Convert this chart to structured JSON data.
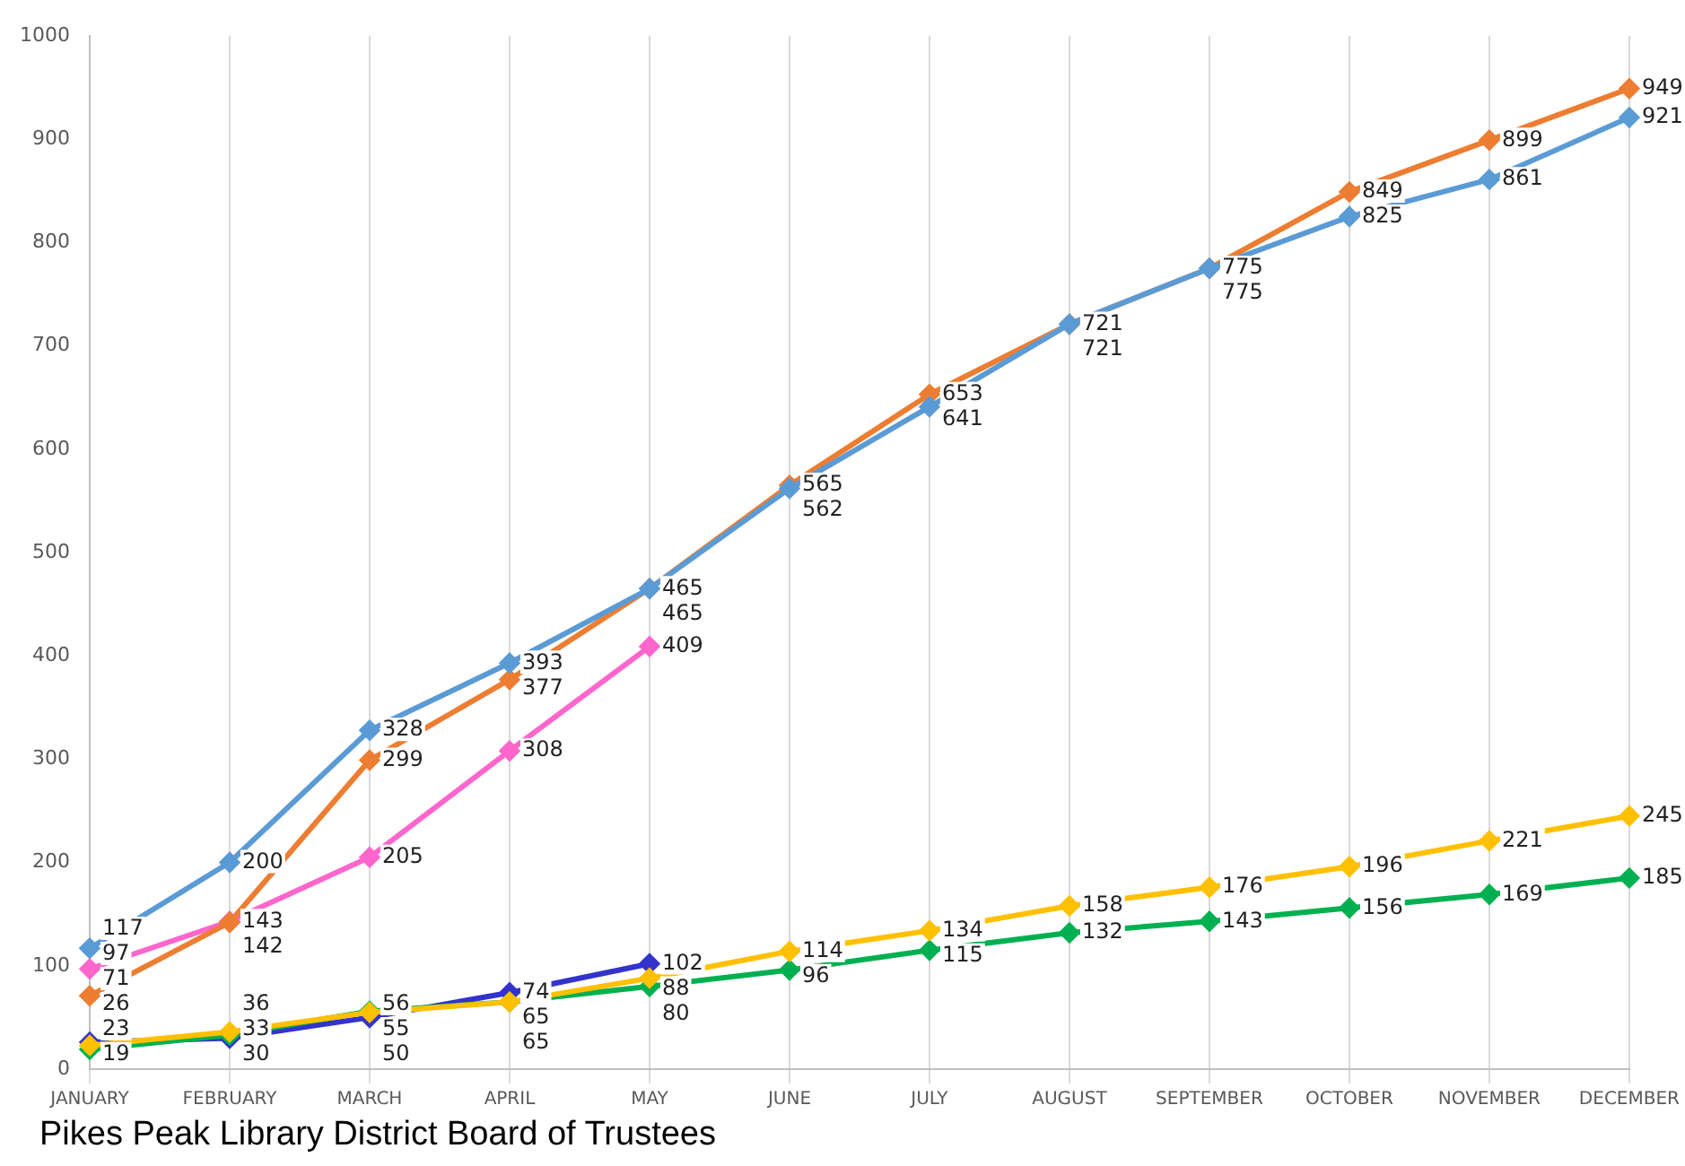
{
  "chart_data": {
    "type": "line",
    "categories": [
      "JANUARY",
      "FEBRUARY",
      "MARCH",
      "APRIL",
      "MAY",
      "JUNE",
      "JULY",
      "AUGUST",
      "SEPTEMBER",
      "OCTOBER",
      "NOVEMBER",
      "DECEMBER"
    ],
    "series": [
      {
        "color": "#5b9bd5",
        "values": [
          117,
          200,
          328,
          393,
          465,
          562,
          641,
          721,
          775,
          825,
          861,
          921
        ]
      },
      {
        "color": "#ed7d31",
        "values": [
          71,
          142,
          299,
          377,
          465,
          565,
          653,
          721,
          775,
          849,
          899,
          949
        ]
      },
      {
        "color": "#ff66cc",
        "values": [
          97,
          143,
          205,
          308,
          409,
          null,
          null,
          null,
          null,
          null,
          null,
          null
        ]
      },
      {
        "color": "#ffc000",
        "values": [
          23,
          36,
          55,
          65,
          88,
          114,
          134,
          158,
          176,
          196,
          221,
          245
        ]
      },
      {
        "color": "#00b050",
        "values": [
          19,
          33,
          56,
          65,
          80,
          96,
          115,
          132,
          143,
          156,
          169,
          185
        ]
      },
      {
        "color": "#3333cc",
        "values": [
          26,
          30,
          50,
          74,
          102,
          null,
          null,
          null,
          null,
          null,
          null,
          null
        ]
      }
    ],
    "ylim": [
      0,
      1000
    ],
    "yticks": [
      0,
      100,
      200,
      300,
      400,
      500,
      600,
      700,
      800,
      900,
      1000
    ],
    "grid": "x",
    "legend": false,
    "marker": "diamond",
    "data_labels": true,
    "annotations": [
      "Pikes Peak Library District Board of Trustees"
    ]
  }
}
